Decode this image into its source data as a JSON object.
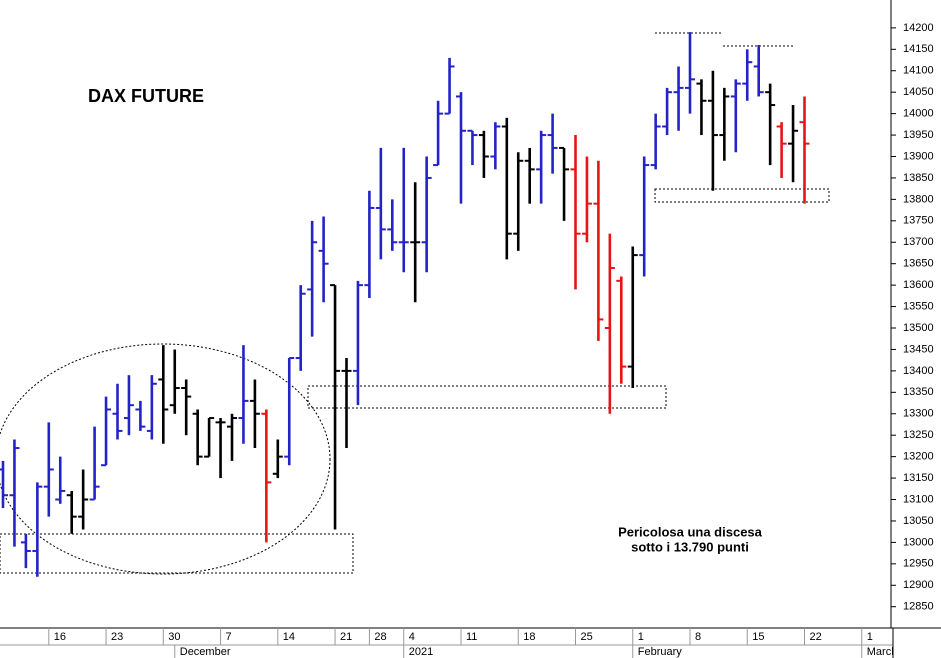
{
  "chart_data": {
    "type": "ohlc",
    "title": "DAX FUTURE",
    "annotation": [
      "Pericolosa una discesa",
      "sotto i 13.790 punti"
    ],
    "categories": [
      null,
      null,
      null,
      null,
      "16",
      null,
      null,
      null,
      null,
      "23",
      null,
      null,
      null,
      null,
      "30",
      null,
      null,
      null,
      null,
      "7",
      null,
      null,
      null,
      null,
      "14",
      null,
      null,
      null,
      null,
      "21",
      null,
      null,
      "28",
      null,
      null,
      "4",
      null,
      null,
      null,
      null,
      "11",
      null,
      null,
      null,
      null,
      "18",
      null,
      null,
      null,
      null,
      "25",
      null,
      null,
      null,
      null,
      "1",
      null,
      null,
      null,
      null,
      "8",
      null,
      null,
      null,
      null,
      "15",
      null,
      null,
      null,
      null,
      "22",
      null,
      null,
      null,
      null,
      "1"
    ],
    "months": [
      null,
      null,
      null,
      null,
      null,
      null,
      null,
      null,
      null,
      null,
      null,
      null,
      null,
      null,
      null,
      "December",
      null,
      null,
      null,
      null,
      null,
      null,
      null,
      null,
      null,
      null,
      null,
      null,
      null,
      null,
      null,
      null,
      null,
      null,
      null,
      "2021",
      null,
      null,
      null,
      null,
      null,
      null,
      null,
      null,
      null,
      null,
      null,
      null,
      null,
      null,
      null,
      null,
      null,
      null,
      null,
      "February",
      null,
      null,
      null,
      null,
      null,
      null,
      null,
      null,
      null,
      null,
      null,
      null,
      null,
      null,
      null,
      null,
      null,
      null,
      null,
      "March"
    ],
    "open": [
      13170,
      13110,
      13000,
      12980,
      13130,
      13100,
      13110,
      13060,
      13100,
      13180,
      13300,
      13290,
      13310,
      13260,
      13380,
      13320,
      13360,
      13300,
      13200,
      13280,
      13270,
      13290,
      13330,
      13300,
      13160,
      13200,
      13430,
      13590,
      13680,
      13600,
      13400,
      13400,
      13600,
      13780,
      13730,
      13700,
      13700,
      13700,
      13880,
      14000,
      14040,
      13960,
      13950,
      13900,
      13970,
      13720,
      13890,
      13870,
      13950,
      13920,
      13870,
      13720,
      13790,
      13500,
      13610,
      13410,
      13670,
      13880,
      13970,
      14050,
      14060,
      14070,
      14030,
      13950,
      14040,
      14070,
      14110,
      14050,
      13970,
      13930,
      13980,
      null,
      null,
      null,
      null,
      null
    ],
    "high": [
      13190,
      13240,
      13020,
      13140,
      13280,
      13200,
      13120,
      13170,
      13270,
      13340,
      13370,
      13390,
      13330,
      13390,
      13460,
      13450,
      13380,
      13310,
      13290,
      13290,
      13300,
      13460,
      13380,
      13310,
      13240,
      13430,
      13600,
      13750,
      13760,
      13600,
      13430,
      13610,
      13820,
      13920,
      13800,
      13920,
      13840,
      13900,
      14030,
      14130,
      14050,
      13960,
      13960,
      13980,
      13990,
      13910,
      13920,
      13960,
      14000,
      13920,
      13950,
      13900,
      13890,
      13720,
      13620,
      13690,
      13900,
      14000,
      14060,
      14110,
      14190,
      14080,
      14100,
      14060,
      14080,
      14150,
      14160,
      14070,
      13980,
      14020,
      14040,
      null,
      null,
      null,
      null,
      null
    ],
    "low": [
      13080,
      12990,
      12940,
      12920,
      13060,
      13090,
      13020,
      13030,
      13100,
      13180,
      13240,
      13250,
      13260,
      13240,
      13230,
      13300,
      13250,
      13180,
      13200,
      13150,
      13190,
      13230,
      13220,
      13000,
      13150,
      13180,
      13400,
      13480,
      13560,
      13030,
      13220,
      13320,
      13570,
      13660,
      13680,
      13630,
      13560,
      13630,
      13880,
      14000,
      13790,
      13880,
      13850,
      13870,
      13660,
      13680,
      13790,
      13790,
      13860,
      13750,
      13590,
      13700,
      13470,
      13300,
      13370,
      13360,
      13620,
      13870,
      13950,
      13960,
      14000,
      13950,
      13820,
      13890,
      13910,
      14030,
      14040,
      13880,
      13850,
      13840,
      13790,
      null,
      null,
      null,
      null,
      null
    ],
    "close": [
      13110,
      13220,
      12980,
      13130,
      13170,
      13120,
      13060,
      13100,
      13130,
      13310,
      13260,
      13320,
      13270,
      13370,
      13310,
      13360,
      13340,
      13200,
      13290,
      13280,
      13290,
      13330,
      13300,
      13140,
      13200,
      13430,
      13580,
      13700,
      13650,
      13400,
      13400,
      13600,
      13780,
      13730,
      13700,
      13700,
      13700,
      13850,
      14000,
      14110,
      13960,
      13950,
      13900,
      13970,
      13720,
      13890,
      13870,
      13950,
      13920,
      13870,
      13720,
      13790,
      13520,
      13640,
      13410,
      13670,
      13880,
      13970,
      14050,
      14060,
      14080,
      14030,
      13950,
      14040,
      14070,
      14120,
      14050,
      14020,
      13930,
      13960,
      13930,
      null,
      null,
      null,
      null,
      null
    ],
    "bar_colors": [
      "#2323c8",
      "#2323c8",
      "#2323c8",
      "#2323c8",
      "#2323c8",
      "#2323c8",
      "#000000",
      "#000000",
      "#2323c8",
      "#2323c8",
      "#2323c8",
      "#2323c8",
      "#2323c8",
      "#2323c8",
      "#000000",
      "#000000",
      "#000000",
      "#000000",
      "#000000",
      "#000000",
      "#000000",
      "#2323c8",
      "#000000",
      "#e81414",
      "#000000",
      "#2323c8",
      "#2323c8",
      "#2323c8",
      "#2323c8",
      "#000000",
      "#000000",
      "#2323c8",
      "#2323c8",
      "#2323c8",
      "#2323c8",
      "#2323c8",
      "#000000",
      "#2323c8",
      "#2323c8",
      "#2323c8",
      "#2323c8",
      "#2323c8",
      "#000000",
      "#2323c8",
      "#000000",
      "#000000",
      "#000000",
      "#2323c8",
      "#2323c8",
      "#000000",
      "#e81414",
      "#e81414",
      "#e81414",
      "#e81414",
      "#e81414",
      "#000000",
      "#2323c8",
      "#2323c8",
      "#2323c8",
      "#2323c8",
      "#2323c8",
      "#000000",
      "#000000",
      "#000000",
      "#2323c8",
      "#2323c8",
      "#2323c8",
      "#000000",
      "#e81414",
      "#000000",
      "#e81414",
      null,
      null,
      null,
      null,
      null
    ],
    "ylim": [
      12805,
      14265
    ],
    "yticks": [
      12850,
      12900,
      12950,
      13000,
      13050,
      13100,
      13150,
      13200,
      13250,
      13300,
      13350,
      13400,
      13450,
      13500,
      13550,
      13600,
      13650,
      13700,
      13750,
      13800,
      13850,
      13900,
      13950,
      14000,
      14050,
      14100,
      14150,
      14200
    ]
  }
}
